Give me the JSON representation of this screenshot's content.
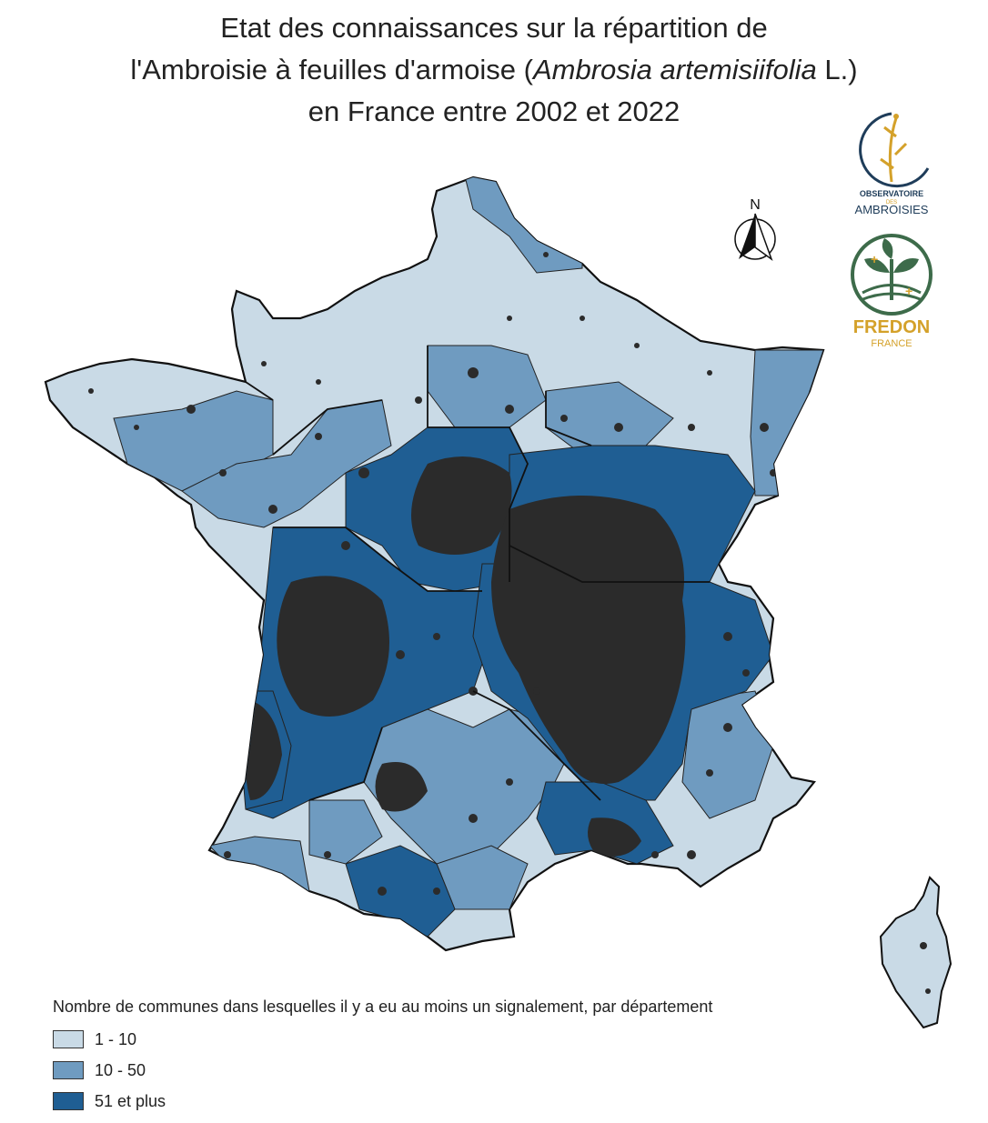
{
  "title": {
    "line1": "Etat des connaissances sur la répartition de",
    "line2_before": "l'Ambroisie à feuilles d'armoise (",
    "line2_italic": "Ambrosia artemisiifolia",
    "line2_after": " L.)",
    "line3": "en France entre 2002 et 2022"
  },
  "north_arrow": {
    "label": "N",
    "icon": "north-arrow-icon"
  },
  "logos": {
    "observatoire": {
      "line1": "OBSERVATOIRE",
      "line2": "DES",
      "line3": "AMBROISIES"
    },
    "fredon": {
      "name": "FREDON",
      "sub": "FRANCE"
    }
  },
  "legend": {
    "title": "Nombre de communes dans lesquelles il y a eu au moins un signalement, par département",
    "classes": [
      {
        "label": "1 - 10",
        "color": "#c9dae6"
      },
      {
        "label": "10 - 50",
        "color": "#6f9bc0"
      },
      {
        "label": "51 et plus",
        "color": "#1f5e93"
      }
    ]
  },
  "colors": {
    "class_low": "#c9dae6",
    "class_mid": "#6f9bc0",
    "class_high": "#1f5e93",
    "commune_reports": "#2b2b2b",
    "borders": "#111111",
    "logo_gold": "#d4a12a",
    "logo_green": "#3d6b4a",
    "logo_navy": "#1f3d5a"
  }
}
